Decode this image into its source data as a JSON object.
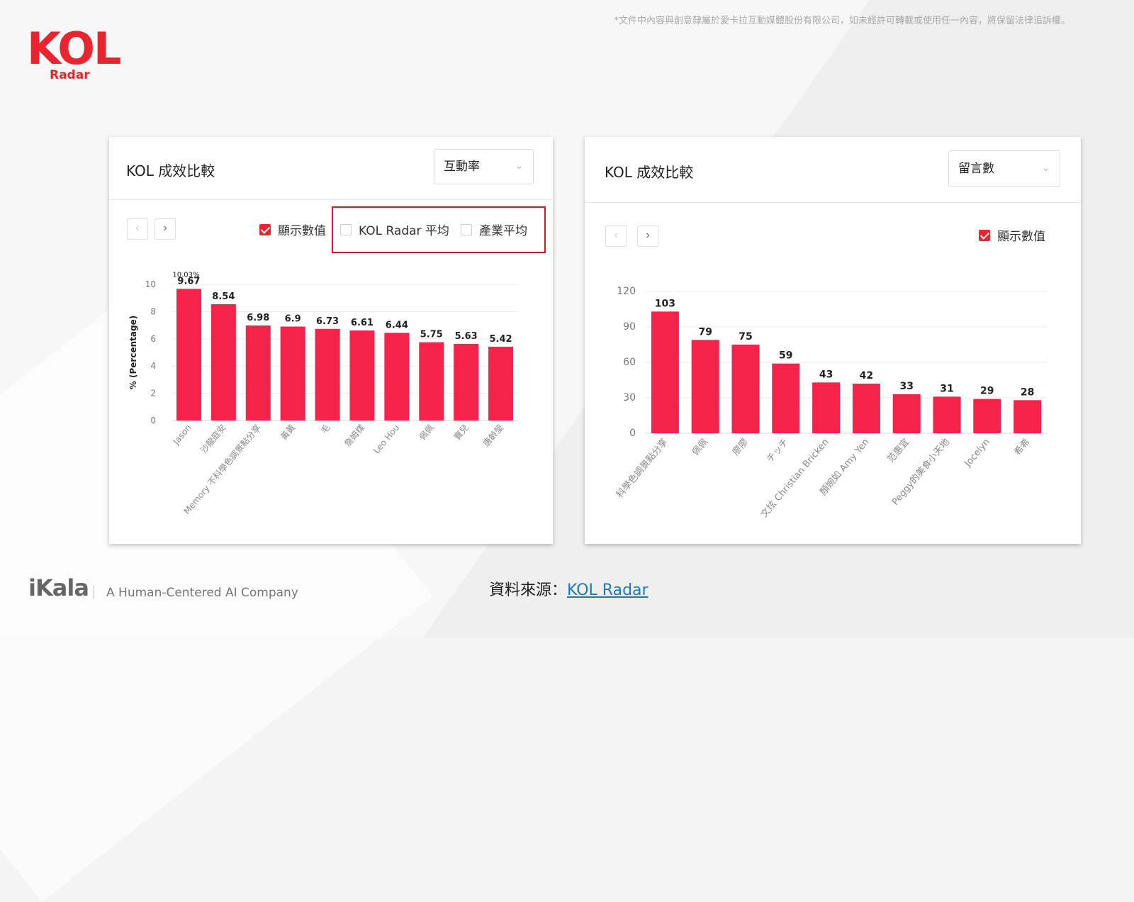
{
  "header": {
    "logo_text": "KOL",
    "logo_sub": "Radar",
    "disclaimer": "*文件中內容與創意隸屬於愛卡拉互動媒體股份有限公司，如未經許可轉載或使用任一內容，將保留法律追訴權。"
  },
  "panels": [
    {
      "title": "KOL 成效比較",
      "dropdown": "互動率",
      "checkboxes": [
        {
          "label": "顯示數值",
          "checked": true
        },
        {
          "label": "KOL Radar 平均",
          "checked": false
        },
        {
          "label": "產業平均",
          "checked": false
        }
      ]
    },
    {
      "title": "KOL 成效比較",
      "dropdown": "留言數",
      "checkboxes": [
        {
          "label": "顯示數值",
          "checked": true
        }
      ]
    }
  ],
  "colors": {
    "bar": "#f5224a",
    "accent": "#e8242f",
    "highlight": "#e0141e"
  },
  "icons": {
    "prev": "chevron-left-icon",
    "next": "chevron-right-icon",
    "dropdown": "chevron-down-icon"
  },
  "chart_data": [
    {
      "type": "bar",
      "title": "",
      "ylabel": "% (Percentage)",
      "ylim": [
        0,
        10
      ],
      "yticks": [
        0,
        2,
        4,
        6,
        8,
        10
      ],
      "categories": [
        "Jason",
        "沙龍庭安",
        "Memory 不科學色調景點分享",
        "黃黃",
        "毛",
        "詹姆樣",
        "Leo Hou",
        "佩佩",
        "寶兒",
        "唐齡瑩"
      ],
      "values": [
        9.67,
        8.54,
        6.98,
        6.9,
        6.73,
        6.61,
        6.44,
        5.75,
        5.63,
        5.42
      ],
      "labels": [
        "9.67",
        "8.54",
        "6.98",
        "6.9",
        "6.73",
        "6.61",
        "6.44",
        "5.75",
        "5.63",
        "5.42"
      ],
      "annotation": "10.03%",
      "grid": true,
      "legend": "none"
    },
    {
      "type": "bar",
      "title": "",
      "ylabel": "",
      "ylim": [
        0,
        120
      ],
      "yticks": [
        0,
        30,
        60,
        90,
        120
      ],
      "categories": [
        "科學色調景點分享",
        "佩佩",
        "廖廖",
        "チッチ",
        "文炫 Christian Bricken",
        "顏婉如 Amy Yen",
        "范惠宜",
        "Peggy的美食小天地",
        "Jocelyn",
        "希希"
      ],
      "values": [
        103,
        79,
        75,
        59,
        43,
        42,
        33,
        31,
        29,
        28
      ],
      "labels": [
        "103",
        "79",
        "75",
        "59",
        "43",
        "42",
        "33",
        "31",
        "29",
        "28"
      ],
      "grid": true,
      "legend": "none"
    }
  ],
  "footer": {
    "brand": "iKala",
    "tagline": "A Human-Centered AI Company",
    "source_prefix": "資料來源：",
    "source_link": "KOL Radar"
  }
}
